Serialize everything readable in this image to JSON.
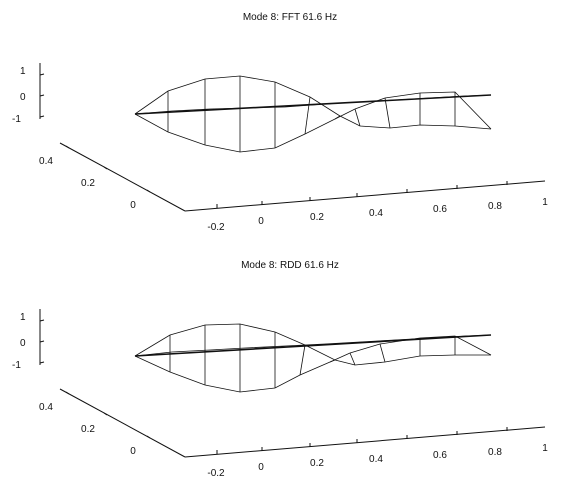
{
  "chart_data": [
    {
      "type": "surface",
      "title": "Mode 8: FFT 61.6 Hz",
      "x_ticks": [
        "-0.2",
        "0",
        "0.2",
        "0.4",
        "0.6",
        "0.8",
        "1"
      ],
      "y_ticks": [
        "0",
        "0.2",
        "0.4"
      ],
      "z_ticks": [
        "1",
        "0",
        "-1"
      ],
      "xlim": [
        -0.2,
        1.1
      ],
      "ylim": [
        0,
        0.5
      ],
      "zlim": [
        -1,
        1
      ],
      "grid": false
    },
    {
      "type": "surface",
      "title": "Mode 8: RDD 61.6 Hz",
      "x_ticks": [
        "-0.2",
        "0",
        "0.2",
        "0.4",
        "0.6",
        "0.8",
        "1"
      ],
      "y_ticks": [
        "0",
        "0.2",
        "0.4"
      ],
      "z_ticks": [
        "1",
        "0",
        "-1"
      ],
      "xlim": [
        -0.2,
        1.1
      ],
      "ylim": [
        0,
        0.5
      ],
      "zlim": [
        -1,
        1
      ],
      "grid": false
    }
  ]
}
